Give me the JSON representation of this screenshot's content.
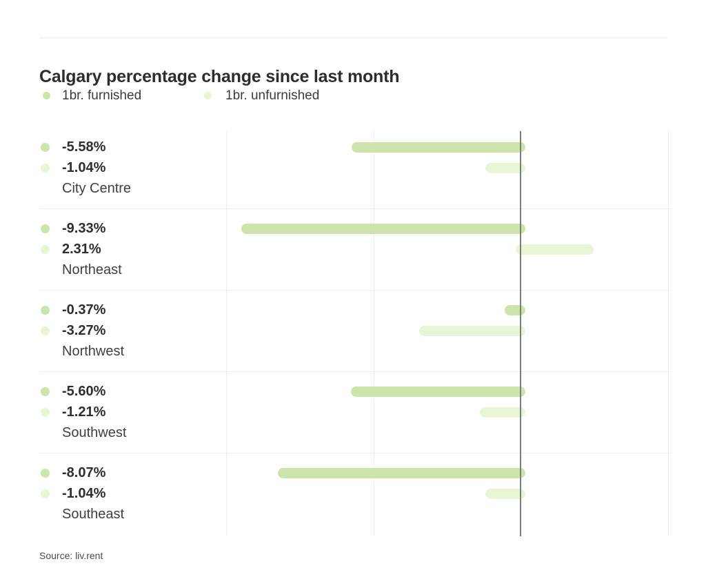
{
  "header": {
    "title": "Calgary percentage change since last month"
  },
  "legend": {
    "items": [
      {
        "label": "1br. furnished",
        "color": "#cde4ab"
      },
      {
        "label": "1br. unfurnished",
        "color": "#e8f6d6"
      }
    ]
  },
  "source": "Source: liv.rent",
  "colors": {
    "furnished_bar": "#cde4ab",
    "unfurnished_bar": "#e8f6d6",
    "zero_line": "#7c7c7c",
    "gridline": "#efefef",
    "divider": "#eeeeee",
    "title_text": "#2d2d2d",
    "value_text": "#2e2e2e",
    "label_text": "#3f3f3f"
  },
  "chart_data": {
    "type": "bar",
    "orientation": "horizontal",
    "title": "Calgary percentage change since last month",
    "unit": "%",
    "categories": [
      "City Centre",
      "Northeast",
      "Northwest",
      "Southwest",
      "Southeast"
    ],
    "series": [
      {
        "name": "1br. furnished",
        "color": "#cde4ab",
        "values": [
          -5.58,
          -9.33,
          -0.37,
          -5.6,
          -8.07
        ],
        "labels": [
          "-5.58%",
          "-9.33%",
          "-0.37%",
          "-5.60%",
          "-8.07%"
        ]
      },
      {
        "name": "1br. unfurnished",
        "color": "#e8f6d6",
        "values": [
          -1.04,
          2.31,
          -3.27,
          -1.21,
          -1.04
        ],
        "labels": [
          "-1.04%",
          "2.31%",
          "-3.27%",
          "-1.21%",
          "-1.04%"
        ]
      }
    ],
    "x_axis": {
      "range": [
        -10,
        5
      ],
      "gridline_values": [
        -10,
        -5,
        0,
        5
      ],
      "zero_line_emphasized": true
    },
    "legend_position": "top-left",
    "grid": "vertical-only",
    "value_labels_position": "left-column",
    "source_note": "Source: liv.rent"
  }
}
